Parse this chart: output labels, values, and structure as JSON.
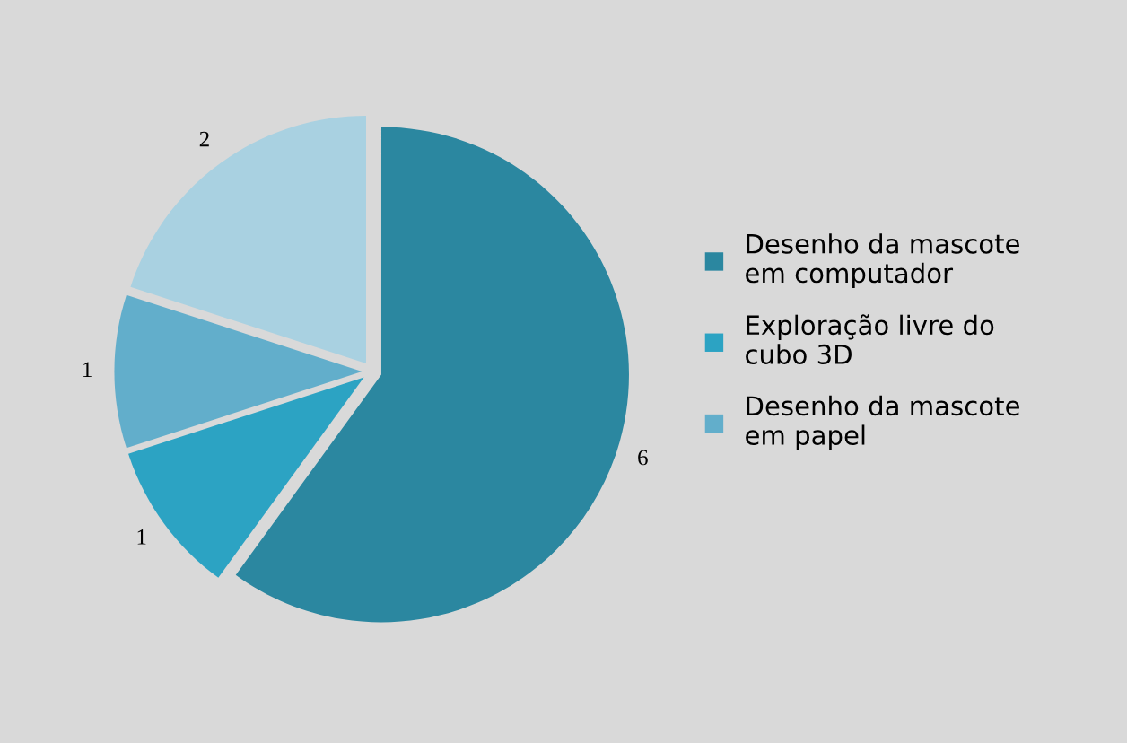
{
  "chart_data": {
    "type": "pie",
    "categories": [
      "Desenho da mascote\nem computador",
      "Exploração livre do\ncubo 3D",
      "Desenho da mascote\nem papel",
      null
    ],
    "values": [
      6,
      1,
      1,
      2
    ],
    "colors": [
      "#2b87a0",
      "#2ca3c3",
      "#62aecb",
      "#a9d1e1"
    ],
    "data_labels": true,
    "legend": "right"
  }
}
